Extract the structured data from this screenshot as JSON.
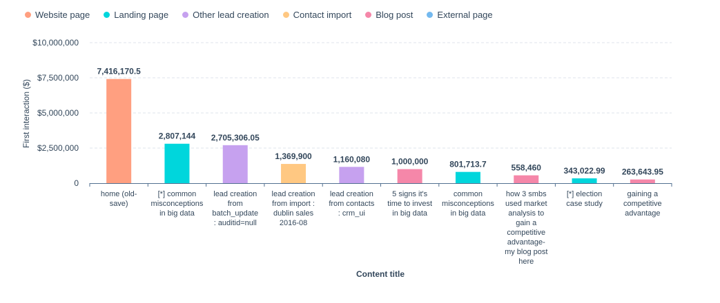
{
  "legend": [
    {
      "label": "Website page",
      "color": "#ff9f80"
    },
    {
      "label": "Landing page",
      "color": "#00d6dc"
    },
    {
      "label": "Other lead creation",
      "color": "#c6a1ef"
    },
    {
      "label": "Contact import",
      "color": "#ffc882"
    },
    {
      "label": "Blog post",
      "color": "#f587a9"
    },
    {
      "label": "External page",
      "color": "#74b9ef"
    }
  ],
  "chart_data": {
    "type": "bar",
    "title": "",
    "xlabel": "Content title",
    "ylabel": "First interaction ($)",
    "ylim": [
      0,
      10000000
    ],
    "yticks": [
      0,
      2500000,
      5000000,
      7500000,
      10000000
    ],
    "ytick_labels": [
      "0",
      "$2,500,000",
      "$5,000,000",
      "$7,500,000",
      "$10,000,000"
    ],
    "categories": [
      [
        "home (old-",
        "save)"
      ],
      [
        "[*] common",
        "misconceptions",
        "in big data"
      ],
      [
        "lead creation",
        "from",
        "batch_update",
        ": auditid=null"
      ],
      [
        "lead creation",
        "from import :",
        "dublin sales",
        "2016-08"
      ],
      [
        "lead creation",
        "from contacts",
        ": crm_ui"
      ],
      [
        "5 signs it's",
        "time to invest",
        "in big data"
      ],
      [
        "common",
        "misconceptions",
        "in big data"
      ],
      [
        "how 3 smbs",
        "used market",
        "analysis to",
        "gain a",
        "competitive",
        "advantage-",
        "my blog post",
        "here"
      ],
      [
        "[*] election",
        "case study"
      ],
      [
        "gaining a",
        "competitive",
        "advantage"
      ]
    ],
    "values": [
      7416170.5,
      2807144,
      2705306.05,
      1369900,
      1160080,
      1000000,
      801713.7,
      558460,
      343022.99,
      263643.95
    ],
    "value_labels": [
      "7,416,170.5",
      "2,807,144",
      "2,705,306.05",
      "1,369,900",
      "1,160,080",
      "1,000,000",
      "801,713.7",
      "558,460",
      "343,022.99",
      "263,643.95"
    ],
    "bar_types": [
      "Website page",
      "Landing page",
      "Other lead creation",
      "Contact import",
      "Other lead creation",
      "Blog post",
      "Landing page",
      "Blog post",
      "Landing page",
      "Blog post"
    ],
    "grid": true,
    "legend_position": "top-left"
  }
}
